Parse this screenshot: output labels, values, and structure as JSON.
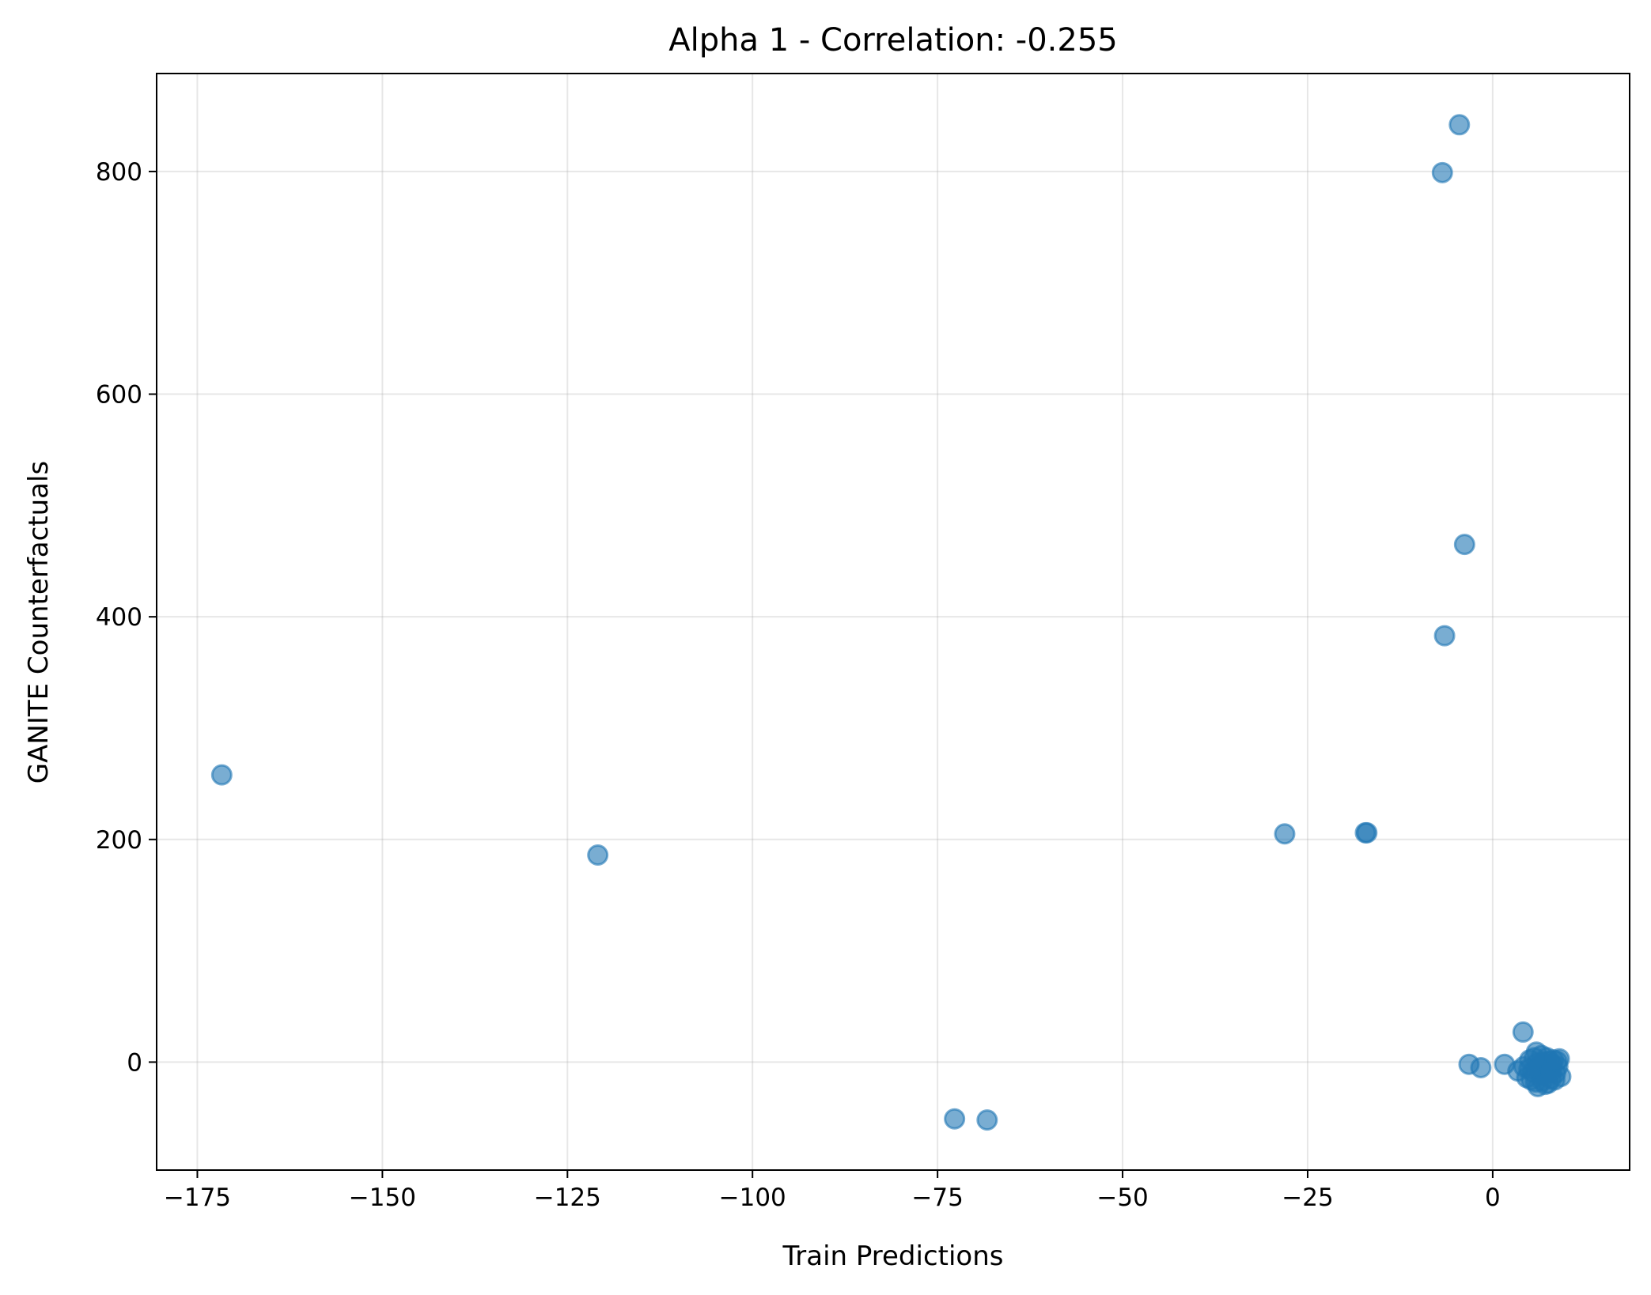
{
  "chart_data": {
    "type": "scatter",
    "title": "Alpha 1 - Correlation: -0.255",
    "xlabel": "Train Predictions",
    "ylabel": "GANITE Counterfactuals",
    "xlim": [
      -180.5,
      18.5
    ],
    "ylim": [
      -97,
      888
    ],
    "xticks": [
      -175,
      -150,
      -125,
      -100,
      -75,
      -50,
      -25,
      0
    ],
    "xtick_labels": [
      "−175",
      "−150",
      "−125",
      "−100",
      "−75",
      "−50",
      "−25",
      "0"
    ],
    "yticks": [
      0,
      200,
      400,
      600,
      800
    ],
    "ytick_labels": [
      "0",
      "200",
      "400",
      "600",
      "800"
    ],
    "grid": true,
    "marker_color": "#1f77b4",
    "marker_alpha": 0.6,
    "points": [
      {
        "x": -4.5,
        "y": 842
      },
      {
        "x": -6.8,
        "y": 799
      },
      {
        "x": -3.8,
        "y": 465
      },
      {
        "x": -6.5,
        "y": 383
      },
      {
        "x": -171.7,
        "y": 258
      },
      {
        "x": -120.9,
        "y": 186
      },
      {
        "x": -28.1,
        "y": 205
      },
      {
        "x": -17.2,
        "y": 206
      },
      {
        "x": -17.0,
        "y": 206
      },
      {
        "x": -72.7,
        "y": -51
      },
      {
        "x": -68.3,
        "y": -52
      },
      {
        "x": 4.1,
        "y": 27
      },
      {
        "x": -3.2,
        "y": -2
      },
      {
        "x": -1.6,
        "y": -5
      },
      {
        "x": 1.6,
        "y": -2
      },
      {
        "x": 3.4,
        "y": -8
      },
      {
        "x": 4.2,
        "y": -4
      },
      {
        "x": 4.6,
        "y": -14
      },
      {
        "x": 5.0,
        "y": 2
      },
      {
        "x": 5.4,
        "y": -9
      },
      {
        "x": 5.8,
        "y": -18
      },
      {
        "x": 5.9,
        "y": 9
      },
      {
        "x": 6.3,
        "y": -3
      },
      {
        "x": 6.6,
        "y": 6
      },
      {
        "x": 6.8,
        "y": -12
      },
      {
        "x": 7.1,
        "y": -20
      },
      {
        "x": 7.3,
        "y": 4
      },
      {
        "x": 7.6,
        "y": -7
      },
      {
        "x": 7.9,
        "y": -15
      },
      {
        "x": 8.2,
        "y": 2
      },
      {
        "x": 8.5,
        "y": -10
      },
      {
        "x": 8.8,
        "y": -4
      },
      {
        "x": 9.0,
        "y": 3
      },
      {
        "x": 9.2,
        "y": -13
      },
      {
        "x": 6.0,
        "y": -1
      },
      {
        "x": 6.9,
        "y": 0
      },
      {
        "x": 7.7,
        "y": 1
      },
      {
        "x": 5.2,
        "y": -16
      },
      {
        "x": 6.4,
        "y": -10
      },
      {
        "x": 7.4,
        "y": -5
      },
      {
        "x": 8.0,
        "y": -2
      },
      {
        "x": 5.6,
        "y": 4
      },
      {
        "x": 6.7,
        "y": -17
      },
      {
        "x": 7.9,
        "y": -9
      },
      {
        "x": 8.7,
        "y": 1
      },
      {
        "x": 4.9,
        "y": -6
      },
      {
        "x": 6.1,
        "y": -22
      },
      {
        "x": 7.5,
        "y": -19
      },
      {
        "x": 8.4,
        "y": -16
      }
    ]
  }
}
